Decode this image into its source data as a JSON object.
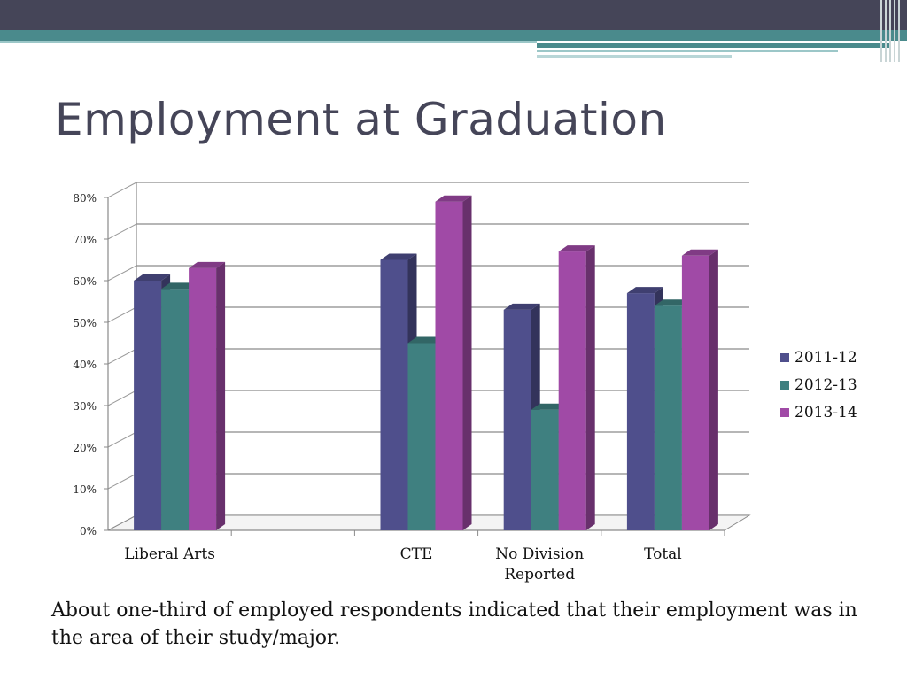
{
  "slide": {
    "title": "Employment at Graduation",
    "caption": "About one-third of employed respondents indicated that their employment was in the area of their study/major."
  },
  "chart_data": {
    "type": "bar",
    "title": "",
    "xlabel": "",
    "ylabel": "",
    "categories": [
      "Liberal Arts",
      "",
      "CTE",
      "No Division Reported",
      "Total"
    ],
    "category_lines": [
      [
        "Liberal Arts"
      ],
      [],
      [
        "CTE"
      ],
      [
        "No Division",
        "Reported"
      ],
      [
        "Total"
      ]
    ],
    "series": [
      {
        "name": "2011-12",
        "color": "#4f4f8c",
        "values": [
          60,
          null,
          65,
          53,
          57
        ]
      },
      {
        "name": "2012-13",
        "color": "#3f8080",
        "values": [
          58,
          null,
          45,
          29,
          54
        ]
      },
      {
        "name": "2013-14",
        "color": "#a04aa6",
        "values": [
          63,
          null,
          79,
          67,
          66
        ]
      }
    ],
    "yticks": [
      "0%",
      "10%",
      "20%",
      "30%",
      "40%",
      "50%",
      "60%",
      "70%",
      "80%"
    ],
    "ylim": [
      0,
      80
    ],
    "grid": true,
    "legend": "right"
  }
}
